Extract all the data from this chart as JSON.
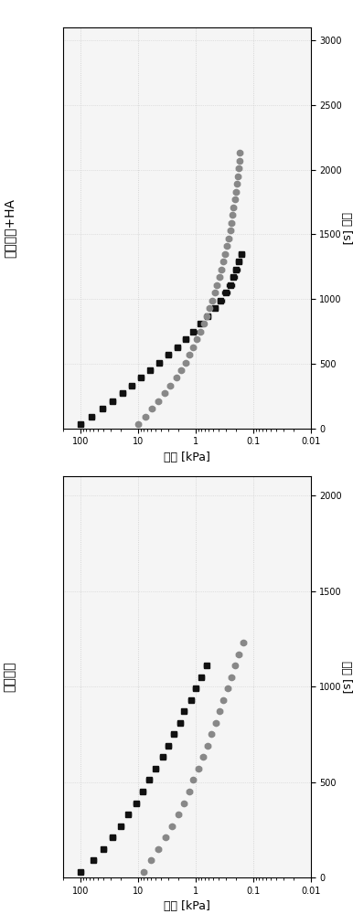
{
  "subplot1_title": "生物墨水",
  "subplot2_title": "生物墨水+HA",
  "ylabel": "應變 [kPa]",
  "xlabel": "時間 [s]",
  "background_color": "#f5f5f5",
  "grid_color": "#cccccc",
  "black_color": "#111111",
  "gray_color": "#888888",
  "subplot1": {
    "xlim": [
      0,
      2100
    ],
    "xticks": [
      0,
      500,
      1000,
      1500,
      2000
    ],
    "ylim_log": [
      0.01,
      200
    ],
    "black_x": [
      30,
      90,
      150,
      210,
      270,
      330,
      390,
      450,
      510,
      570,
      630,
      690,
      750,
      810,
      870,
      930,
      990,
      1050,
      1110
    ],
    "black_y": [
      100,
      60,
      40,
      28,
      20,
      15,
      11,
      8.5,
      6.5,
      5.0,
      3.8,
      3.0,
      2.4,
      1.9,
      1.6,
      1.2,
      1.0,
      0.8,
      0.65
    ],
    "black_yerr": [
      8,
      6,
      4,
      3,
      2,
      1.5,
      1.2,
      0.9,
      0.7,
      0.5,
      0.4,
      0.3,
      0.25,
      0.2,
      0.15,
      0.12,
      0.1,
      0.08,
      0.06
    ],
    "gray_x": [
      30,
      90,
      150,
      210,
      270,
      330,
      390,
      450,
      510,
      570,
      630,
      690,
      750,
      810,
      870,
      930,
      990,
      1050,
      1110,
      1170,
      1230
    ],
    "gray_y": [
      8.0,
      6.0,
      4.5,
      3.4,
      2.6,
      2.0,
      1.6,
      1.3,
      1.1,
      0.9,
      0.75,
      0.63,
      0.53,
      0.45,
      0.38,
      0.33,
      0.28,
      0.24,
      0.21,
      0.18,
      0.15
    ],
    "gray_yerr": [
      0.8,
      0.6,
      0.45,
      0.35,
      0.26,
      0.2,
      0.16,
      0.13,
      0.11,
      0.09,
      0.075,
      0.063,
      0.053,
      0.045,
      0.038,
      0.033,
      0.028,
      0.024,
      0.021,
      0.018,
      0.015
    ]
  },
  "subplot2": {
    "xlim": [
      0,
      3100
    ],
    "xticks": [
      0,
      500,
      1000,
      1500,
      2000,
      2500,
      3000
    ],
    "ylim_log": [
      0.01,
      200
    ],
    "black_x": [
      30,
      90,
      150,
      210,
      270,
      330,
      390,
      450,
      510,
      570,
      630,
      690,
      750,
      810,
      870,
      930,
      990,
      1050,
      1110,
      1170,
      1230,
      1290,
      1350
    ],
    "black_y": [
      100,
      65,
      42,
      28,
      19,
      13,
      9.0,
      6.2,
      4.3,
      3.0,
      2.1,
      1.5,
      1.1,
      0.82,
      0.62,
      0.47,
      0.37,
      0.3,
      0.25,
      0.22,
      0.2,
      0.18,
      0.16
    ],
    "black_yerr": [
      8,
      6,
      4,
      3,
      2,
      1.3,
      0.9,
      0.65,
      0.45,
      0.3,
      0.22,
      0.16,
      0.12,
      0.09,
      0.07,
      0.055,
      0.045,
      0.04,
      0.035,
      0.03,
      0.025,
      0.02,
      0.018
    ],
    "gray_x": [
      30,
      90,
      150,
      210,
      270,
      330,
      390,
      450,
      510,
      570,
      630,
      690,
      750,
      810,
      870,
      930,
      990,
      1050,
      1110,
      1170,
      1230,
      1290,
      1350,
      1410,
      1470,
      1530,
      1590,
      1650,
      1710,
      1770,
      1830,
      1890,
      1950,
      2010,
      2070,
      2130
    ],
    "gray_y": [
      10.0,
      7.5,
      5.8,
      4.5,
      3.5,
      2.8,
      2.2,
      1.8,
      1.5,
      1.3,
      1.1,
      0.95,
      0.83,
      0.73,
      0.65,
      0.58,
      0.52,
      0.47,
      0.43,
      0.39,
      0.36,
      0.33,
      0.31,
      0.29,
      0.27,
      0.25,
      0.24,
      0.23,
      0.22,
      0.21,
      0.2,
      0.19,
      0.185,
      0.18,
      0.175,
      0.17
    ],
    "gray_yerr": [
      1.0,
      0.75,
      0.58,
      0.45,
      0.35,
      0.28,
      0.22,
      0.18,
      0.15,
      0.13,
      0.11,
      0.095,
      0.083,
      0.073,
      0.065,
      0.058,
      0.052,
      0.047,
      0.043,
      0.039,
      0.036,
      0.033,
      0.031,
      0.029,
      0.027,
      0.025,
      0.024,
      0.023,
      0.022,
      0.021,
      0.02,
      0.019,
      0.018,
      0.018,
      0.017,
      0.017
    ]
  }
}
